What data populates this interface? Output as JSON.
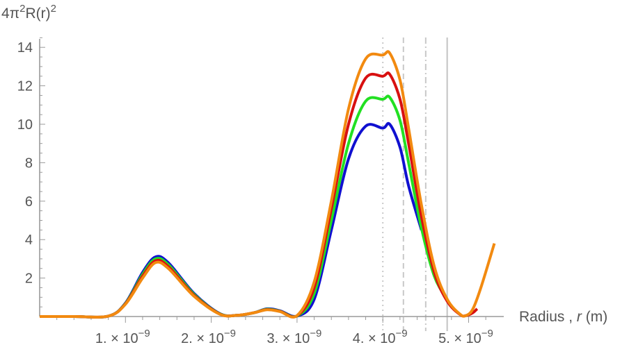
{
  "chart_data": {
    "type": "line",
    "title": "",
    "ylabel": {
      "base": "4π",
      "sup1": "2",
      "mid": "R(r)",
      "sup2": "2"
    },
    "xlabel": {
      "prefix": "Radius , ",
      "var": "r",
      "suffix": " (m)"
    },
    "xlim": [
      0,
      5.3e-09
    ],
    "ylim": [
      0,
      14.6
    ],
    "x_ticks": [
      {
        "value": 1e-09,
        "mant": "1. × 10",
        "exp": "−9"
      },
      {
        "value": 2e-09,
        "mant": "2. × 10",
        "exp": "−9"
      },
      {
        "value": 3e-09,
        "mant": "3. × 10",
        "exp": "−9"
      },
      {
        "value": 4e-09,
        "mant": "4. × 10",
        "exp": "−9"
      },
      {
        "value": 5e-09,
        "mant": "5. × 10",
        "exp": "−9"
      }
    ],
    "y_ticks": [
      {
        "value": 2,
        "label": "2"
      },
      {
        "value": 4,
        "label": "4"
      },
      {
        "value": 6,
        "label": "6"
      },
      {
        "value": 8,
        "label": "8"
      },
      {
        "value": 10,
        "label": "10"
      },
      {
        "value": 12,
        "label": "12"
      },
      {
        "value": 14,
        "label": "14"
      }
    ],
    "reference_lines": [
      {
        "x": 4e-09,
        "style": "dotted",
        "color": "#c8c8c8"
      },
      {
        "x": 4.24e-09,
        "style": "dashed",
        "color": "#c8c8c8"
      },
      {
        "x": 4.5e-09,
        "style": "dashdot",
        "color": "#c8c8c8"
      },
      {
        "x": 4.75e-09,
        "style": "solid",
        "color": "#c8c8c8"
      }
    ],
    "series": [
      {
        "color": "#1010d0",
        "x_end": 4.45e-09,
        "x": [
          0,
          4e-10,
          8e-10,
          1e-09,
          1.2e-09,
          1.35e-09,
          1.5e-09,
          1.8e-09,
          2.1e-09,
          2.3e-09,
          2.5e-09,
          2.65e-09,
          2.8e-09,
          3e-09,
          3.2e-09,
          3.4e-09,
          3.6e-09,
          3.8e-09,
          4e-09,
          4.08e-09,
          4.2e-09,
          4.3e-09,
          4.45e-09
        ],
        "y": [
          0,
          0,
          0.02,
          0.7,
          2.3,
          3.1,
          2.8,
          1.2,
          0.15,
          0.06,
          0.2,
          0.4,
          0.3,
          0.02,
          0.9,
          4.5,
          8.2,
          9.9,
          9.8,
          10.0,
          8.8,
          6.8,
          4.5
        ]
      },
      {
        "color": "#22e022",
        "x_end": 4.75e-09,
        "x": [
          0,
          4e-10,
          8e-10,
          1e-09,
          1.2e-09,
          1.35e-09,
          1.5e-09,
          1.8e-09,
          2.1e-09,
          2.3e-09,
          2.5e-09,
          2.65e-09,
          2.8e-09,
          3e-09,
          3.2e-09,
          3.4e-09,
          3.6e-09,
          3.8e-09,
          4e-09,
          4.08e-09,
          4.2e-09,
          4.3e-09,
          4.45e-09,
          4.6e-09,
          4.75e-09
        ],
        "y": [
          0,
          0,
          0.02,
          0.68,
          2.2,
          3.0,
          2.7,
          1.15,
          0.14,
          0.06,
          0.2,
          0.38,
          0.28,
          0.03,
          1.2,
          5.0,
          9.0,
          11.2,
          11.3,
          11.4,
          10.2,
          8.0,
          4.6,
          2.1,
          0.9
        ]
      },
      {
        "color": "#d81010",
        "x_end": 5.1e-09,
        "x": [
          0,
          4e-10,
          8e-10,
          1e-09,
          1.2e-09,
          1.35e-09,
          1.5e-09,
          1.8e-09,
          2.1e-09,
          2.3e-09,
          2.5e-09,
          2.65e-09,
          2.8e-09,
          3e-09,
          3.2e-09,
          3.4e-09,
          3.6e-09,
          3.8e-09,
          4e-09,
          4.08e-09,
          4.2e-09,
          4.3e-09,
          4.45e-09,
          4.6e-09,
          4.75e-09,
          4.9e-09,
          4.97e-09,
          5.05e-09,
          5.1e-09
        ],
        "y": [
          0,
          0,
          0.02,
          0.66,
          2.1,
          2.9,
          2.6,
          1.1,
          0.13,
          0.06,
          0.2,
          0.36,
          0.27,
          0.04,
          1.5,
          5.6,
          10.0,
          12.4,
          12.5,
          12.6,
          11.3,
          9.0,
          5.2,
          2.3,
          0.8,
          0.1,
          0.05,
          0.2,
          0.4
        ]
      },
      {
        "color": "#f28a10",
        "x_end": 5.3e-09,
        "x": [
          0,
          4e-10,
          8e-10,
          1e-09,
          1.2e-09,
          1.35e-09,
          1.5e-09,
          1.8e-09,
          2.1e-09,
          2.3e-09,
          2.5e-09,
          2.65e-09,
          2.8e-09,
          3e-09,
          3.2e-09,
          3.4e-09,
          3.6e-09,
          3.8e-09,
          4e-09,
          4.08e-09,
          4.2e-09,
          4.3e-09,
          4.45e-09,
          4.6e-09,
          4.75e-09,
          4.9e-09,
          4.97e-09,
          5.05e-09,
          5.15e-09,
          5.3e-09
        ],
        "y": [
          0,
          0,
          0.02,
          0.64,
          2.0,
          2.8,
          2.5,
          1.05,
          0.12,
          0.06,
          0.2,
          0.35,
          0.26,
          0.05,
          1.8,
          6.0,
          10.8,
          13.4,
          13.6,
          13.7,
          12.3,
          9.8,
          5.8,
          2.6,
          0.9,
          0.12,
          0.05,
          0.4,
          1.6,
          3.8
        ]
      }
    ]
  }
}
